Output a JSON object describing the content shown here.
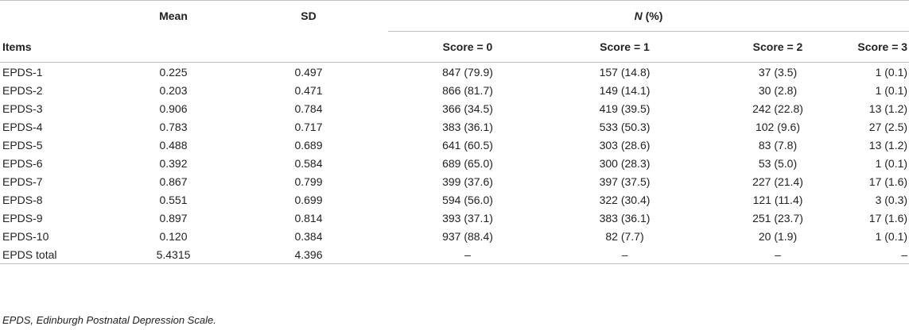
{
  "headers": {
    "items": "Items",
    "mean": "Mean",
    "sd": "SD",
    "n_label": "N",
    "pct_label": " (%)",
    "score0": "Score = 0",
    "score1": "Score = 1",
    "score2": "Score = 2",
    "score3": "Score = 3"
  },
  "rows": [
    {
      "item": "EPDS-1",
      "mean": "0.225",
      "sd": "0.497",
      "s0": "847 (79.9)",
      "s1": "157 (14.8)",
      "s2": "37 (3.5)",
      "s3": "1 (0.1)"
    },
    {
      "item": "EPDS-2",
      "mean": "0.203",
      "sd": "0.471",
      "s0": "866 (81.7)",
      "s1": "149 (14.1)",
      "s2": "30 (2.8)",
      "s3": "1 (0.1)"
    },
    {
      "item": "EPDS-3",
      "mean": "0.906",
      "sd": "0.784",
      "s0": "366 (34.5)",
      "s1": "419 (39.5)",
      "s2": "242 (22.8)",
      "s3": "13 (1.2)"
    },
    {
      "item": "EPDS-4",
      "mean": "0.783",
      "sd": "0.717",
      "s0": "383 (36.1)",
      "s1": "533 (50.3)",
      "s2": "102 (9.6)",
      "s3": "27 (2.5)"
    },
    {
      "item": "EPDS-5",
      "mean": "0.488",
      "sd": "0.689",
      "s0": "641 (60.5)",
      "s1": "303 (28.6)",
      "s2": "83 (7.8)",
      "s3": "13 (1.2)"
    },
    {
      "item": "EPDS-6",
      "mean": "0.392",
      "sd": "0.584",
      "s0": "689 (65.0)",
      "s1": "300 (28.3)",
      "s2": "53 (5.0)",
      "s3": "1 (0.1)"
    },
    {
      "item": "EPDS-7",
      "mean": "0.867",
      "sd": "0.799",
      "s0": "399 (37.6)",
      "s1": "397 (37.5)",
      "s2": "227 (21.4)",
      "s3": "17 (1.6)"
    },
    {
      "item": "EPDS-8",
      "mean": "0.551",
      "sd": "0.699",
      "s0": "594 (56.0)",
      "s1": "322 (30.4)",
      "s2": "121 (11.4)",
      "s3": "3 (0.3)"
    },
    {
      "item": "EPDS-9",
      "mean": "0.897",
      "sd": "0.814",
      "s0": "393 (37.1)",
      "s1": "383 (36.1)",
      "s2": "251 (23.7)",
      "s3": "17 (1.6)"
    },
    {
      "item": "EPDS-10",
      "mean": "0.120",
      "sd": "0.384",
      "s0": "937 (88.4)",
      "s1": "82 (7.7)",
      "s2": "20 (1.9)",
      "s3": "1 (0.1)"
    },
    {
      "item": "EPDS total",
      "mean": "5.4315",
      "sd": "4.396",
      "s0": "–",
      "s1": "–",
      "s2": "–",
      "s3": "–"
    }
  ],
  "footnote": "EPDS, Edinburgh Postnatal Depression Scale."
}
